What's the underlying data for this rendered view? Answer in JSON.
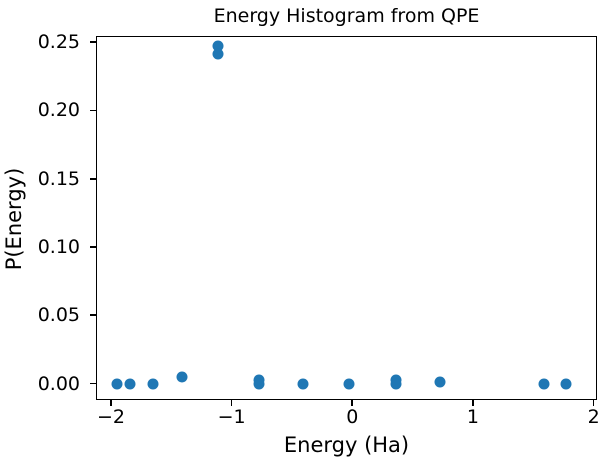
{
  "chart_data": {
    "type": "scatter",
    "title": "Energy Histogram from QPE",
    "xlabel": "Energy (Ha)",
    "ylabel": "P(Energy)",
    "marker_color": "#1f77b4",
    "axes_color": "#000000",
    "background_color": "#ffffff",
    "grid": false,
    "legend_position": "none",
    "xlim": [
      -2.124,
      2.028
    ],
    "ylim": [
      -0.012,
      0.2545
    ],
    "xticks": {
      "values": [
        -2,
        -1,
        0,
        1,
        2
      ],
      "labels": [
        "−2",
        "−1",
        "0",
        "1",
        "2"
      ]
    },
    "yticks": {
      "values": [
        0.0,
        0.05,
        0.1,
        0.15,
        0.2,
        0.25
      ],
      "labels": [
        "0.00",
        "0.05",
        "0.10",
        "0.15",
        "0.20",
        "0.25"
      ]
    },
    "points": [
      {
        "x": -1.95,
        "y": 0.0
      },
      {
        "x": -1.84,
        "y": 0.0
      },
      {
        "x": -1.65,
        "y": 0.0
      },
      {
        "x": -1.41,
        "y": 0.005
      },
      {
        "x": -1.11,
        "y": 0.247
      },
      {
        "x": -1.11,
        "y": 0.241
      },
      {
        "x": -0.77,
        "y": 0.003
      },
      {
        "x": -0.77,
        "y": 0.0
      },
      {
        "x": -0.41,
        "y": 0.0
      },
      {
        "x": -0.03,
        "y": 0.0
      },
      {
        "x": 0.36,
        "y": 0.003
      },
      {
        "x": 0.36,
        "y": 0.0
      },
      {
        "x": 0.73,
        "y": 0.001
      },
      {
        "x": 1.59,
        "y": 0.0
      },
      {
        "x": 1.77,
        "y": 0.0
      }
    ]
  }
}
